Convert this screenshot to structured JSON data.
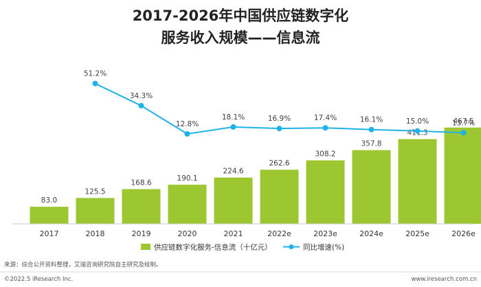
{
  "chart_data": {
    "type": "bar",
    "title_line1": "2017-2026年中国供应链数字化",
    "title_line2": "服务收入规模——信息流",
    "categories": [
      "2017",
      "2018",
      "2019",
      "2020",
      "2021",
      "2022e",
      "2023e",
      "2024e",
      "2025e",
      "2026e"
    ],
    "series": [
      {
        "name": "供应链数字化服务-信息流（十亿元）",
        "kind": "bar",
        "values": [
          83.0,
          125.5,
          168.6,
          190.1,
          224.6,
          262.6,
          308.2,
          357.8,
          411.3,
          467.5
        ],
        "labels": [
          "83.0",
          "125.5",
          "168.6",
          "190.1",
          "224.6",
          "262.6",
          "308.2",
          "357.8",
          "411.3",
          "467.5"
        ]
      },
      {
        "name": "同比增速(%)",
        "kind": "line",
        "values": [
          null,
          51.2,
          34.3,
          12.8,
          18.1,
          16.9,
          17.4,
          16.1,
          15.0,
          13.7
        ],
        "labels": [
          "",
          "51.2%",
          "34.3%",
          "12.8%",
          "18.1%",
          "16.9%",
          "17.4%",
          "16.1%",
          "15.0%",
          "13.7%"
        ]
      }
    ],
    "ylim": [
      0,
      480
    ],
    "grid": false,
    "legend_position": "bottom"
  },
  "colors": {
    "bar": "#9dc730",
    "line": "#1db2e8",
    "title": "#222222",
    "axis": "#c8c8c8"
  },
  "footer": {
    "source": "来源：综合公开资料整理，艾瑞咨询研究院自主研究及绘制。",
    "copyright": "©2022.5 iResearch Inc.",
    "website": "www.iresearch.com.cn"
  }
}
